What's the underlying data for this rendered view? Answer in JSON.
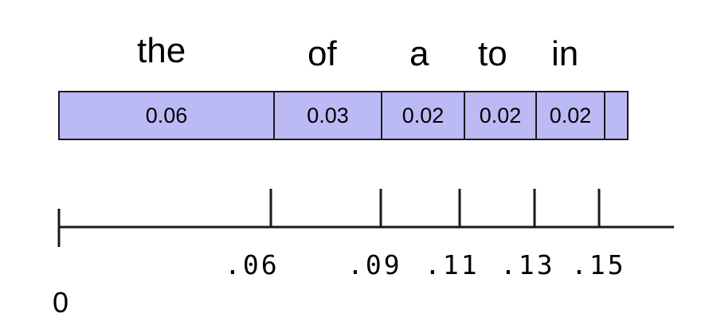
{
  "words": [
    "the",
    "of",
    "a",
    "to",
    "in"
  ],
  "probabilities": [
    "0.06",
    "0.03",
    "0.02",
    "0.02",
    "0.02",
    ""
  ],
  "axis": {
    "origin_label": "0",
    "tick_labels": [
      ".06",
      ".09",
      ".11",
      ".13",
      ".15"
    ]
  },
  "colors": {
    "cell_fill": "#bbbaf5",
    "stroke": "#1a1a1a"
  }
}
